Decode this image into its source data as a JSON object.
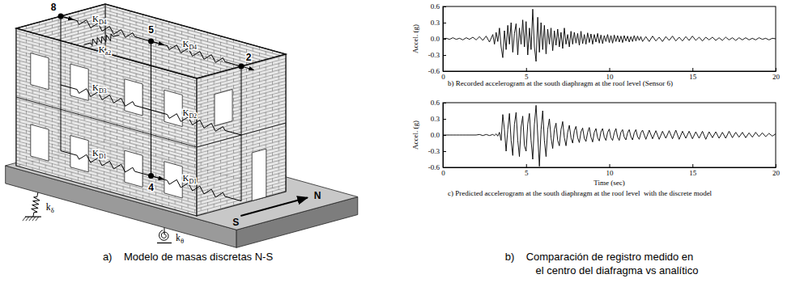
{
  "chart_data": [
    {
      "type": "line",
      "title": "b) Recorded accelerogram at the south diaphragm at the roof level (Sensor 6)",
      "ylabel": "Accel. (g)",
      "color": "#000000",
      "xlim": [
        0,
        20
      ],
      "ylim": [
        -0.6,
        0.6
      ],
      "xticks": [
        0,
        5,
        10,
        15,
        20
      ],
      "yticks": [
        -0.6,
        -0.3,
        {
          "value": 0,
          "label": "0.0"
        },
        0.3,
        0.6
      ],
      "x": [
        0,
        0.2,
        0.4,
        0.6,
        0.8,
        1,
        1.2,
        1.4,
        1.6,
        1.8,
        2,
        2.2,
        2.4,
        2.6,
        2.8,
        3,
        3.1,
        3.2,
        3.3,
        3.4,
        3.5,
        3.6,
        3.7,
        3.8,
        3.9,
        4,
        4.1,
        4.2,
        4.3,
        4.4,
        4.5,
        4.6,
        4.7,
        4.8,
        4.9,
        5,
        5.1,
        5.2,
        5.3,
        5.4,
        5.5,
        5.6,
        5.7,
        5.8,
        5.9,
        6,
        6.1,
        6.2,
        6.3,
        6.4,
        6.5,
        6.6,
        6.7,
        6.8,
        6.9,
        7,
        7.1,
        7.2,
        7.3,
        7.4,
        7.5,
        7.6,
        7.7,
        7.8,
        7.9,
        8,
        8.1,
        8.2,
        8.3,
        8.4,
        8.5,
        8.6,
        8.7,
        8.8,
        8.9,
        9,
        9.1,
        9.2,
        9.3,
        9.4,
        9.5,
        9.6,
        9.7,
        9.8,
        9.9,
        10,
        10.1,
        10.2,
        10.3,
        10.4,
        10.5,
        10.6,
        10.7,
        10.8,
        10.9,
        11,
        11.1,
        11.2,
        11.3,
        11.4,
        11.5,
        11.6,
        11.7,
        11.8,
        11.9,
        12,
        12.2,
        12.4,
        12.6,
        12.8,
        13,
        13.2,
        13.4,
        13.6,
        13.8,
        14,
        14.2,
        14.4,
        14.6,
        14.8,
        15,
        15.2,
        15.4,
        15.6,
        15.8,
        16,
        16.2,
        16.4,
        16.6,
        16.8,
        17,
        17.2,
        17.4,
        17.6,
        17.8,
        18,
        18.2,
        18.4,
        18.6,
        18.8,
        19,
        19.2,
        19.4,
        19.6,
        19.8,
        20
      ],
      "values": [
        0,
        0.01,
        -0.01,
        0.02,
        -0.01,
        0.01,
        -0.02,
        0.02,
        -0.01,
        0.03,
        -0.02,
        0.04,
        -0.03,
        0.05,
        -0.06,
        0.08,
        -0.1,
        0.12,
        -0.05,
        0.2,
        -0.15,
        -0.35,
        0.15,
        -0.2,
        0.25,
        -0.1,
        0.3,
        -0.25,
        0.1,
        0.28,
        -0.3,
        0.2,
        -0.1,
        0.35,
        -0.15,
        0.32,
        -0.3,
        0.2,
        -0.2,
        0.55,
        -0.15,
        -0.42,
        0.4,
        -0.25,
        0.3,
        -0.2,
        0.25,
        -0.28,
        0.18,
        -0.1,
        0.2,
        -0.22,
        0.15,
        -0.12,
        0.18,
        -0.15,
        0.12,
        -0.18,
        0.2,
        -0.1,
        0.08,
        -0.15,
        0.14,
        -0.1,
        0.12,
        -0.08,
        0.1,
        -0.12,
        0.14,
        -0.09,
        0.08,
        -0.1,
        0.11,
        -0.07,
        0.09,
        -0.1,
        0.08,
        -0.06,
        0.1,
        -0.08,
        0.07,
        -0.09,
        0.06,
        -0.05,
        0.08,
        -0.07,
        0.06,
        -0.08,
        0.07,
        -0.05,
        0.06,
        -0.06,
        0.05,
        -0.07,
        0.06,
        -0.04,
        0.05,
        -0.06,
        0.04,
        -0.05,
        0.06,
        -0.04,
        0.05,
        -0.03,
        0.04,
        -0.05,
        0.04,
        -0.05,
        0.05,
        -0.04,
        0.03,
        -0.05,
        0.04,
        -0.03,
        0.05,
        -0.04,
        0.03,
        -0.04,
        0.04,
        -0.03,
        0.05,
        -0.03,
        0.03,
        -0.04,
        0.03,
        -0.02,
        0.03,
        -0.03,
        0.02,
        -0.03,
        0.03,
        -0.02,
        0.02,
        -0.03,
        0.02,
        -0.02,
        0.02,
        -0.02,
        0.01,
        -0.02,
        0.02,
        -0.01,
        0.01,
        -0.02,
        0.01,
        0
      ]
    },
    {
      "type": "line",
      "title": "c) Predicted accelerogram at the south diaphragm at the roof level  with the discrete model",
      "xlabel": "Time (sec)",
      "ylabel": "Accel. (g)",
      "color": "#000000",
      "xlim": [
        0,
        20
      ],
      "ylim": [
        -0.6,
        0.6
      ],
      "xticks": [
        0,
        5,
        10,
        15,
        20
      ],
      "yticks": [
        -0.6,
        -0.3,
        {
          "value": 0,
          "label": "0.0"
        },
        0.3,
        0.6
      ],
      "x": [
        0,
        0.2,
        0.4,
        0.6,
        0.8,
        1,
        1.2,
        1.4,
        1.6,
        1.8,
        2,
        2.2,
        2.4,
        2.6,
        2.8,
        3,
        3.1,
        3.2,
        3.3,
        3.4,
        3.5,
        3.6,
        3.7,
        3.8,
        3.9,
        4,
        4.1,
        4.2,
        4.3,
        4.4,
        4.5,
        4.6,
        4.7,
        4.8,
        4.9,
        5,
        5.1,
        5.2,
        5.3,
        5.4,
        5.5,
        5.6,
        5.7,
        5.8,
        5.9,
        6,
        6.1,
        6.2,
        6.3,
        6.4,
        6.5,
        6.6,
        6.7,
        6.8,
        6.9,
        7,
        7.1,
        7.2,
        7.3,
        7.4,
        7.5,
        7.6,
        7.7,
        7.8,
        7.9,
        8,
        8.1,
        8.2,
        8.3,
        8.4,
        8.5,
        8.6,
        8.7,
        8.8,
        8.9,
        9,
        9.1,
        9.2,
        9.3,
        9.4,
        9.5,
        9.6,
        9.7,
        9.8,
        9.9,
        10,
        10.1,
        10.2,
        10.3,
        10.4,
        10.5,
        10.6,
        10.7,
        10.8,
        10.9,
        11,
        11.1,
        11.2,
        11.3,
        11.4,
        11.5,
        11.6,
        11.7,
        11.8,
        11.9,
        12,
        12.2,
        12.4,
        12.6,
        12.8,
        13,
        13.2,
        13.4,
        13.6,
        13.8,
        14,
        14.2,
        14.4,
        14.6,
        14.8,
        15,
        15.2,
        15.4,
        15.6,
        15.8,
        16,
        16.2,
        16.4,
        16.6,
        16.8,
        17,
        17.2,
        17.4,
        17.6,
        17.8,
        18,
        18.2,
        18.4,
        18.6,
        18.8,
        19,
        19.2,
        19.4,
        19.6,
        19.8,
        20
      ],
      "values": [
        0,
        0,
        0,
        0,
        0,
        0,
        0,
        0,
        0,
        0,
        0,
        0.01,
        -0.01,
        0.01,
        -0.01,
        0.01,
        -0.01,
        0.02,
        -0.02,
        0.05,
        -0.1,
        0.38,
        0.1,
        -0.3,
        0.1,
        0.4,
        -0.1,
        -0.38,
        0.2,
        0.42,
        -0.1,
        -0.4,
        0.15,
        0.35,
        -0.2,
        -0.3,
        0.2,
        0.4,
        -0.1,
        -0.45,
        0.2,
        0.55,
        0,
        -0.58,
        0.1,
        0.45,
        -0.1,
        -0.4,
        0.1,
        0.3,
        -0.05,
        -0.25,
        0.1,
        0.22,
        -0.1,
        -0.2,
        0.1,
        0.25,
        -0.05,
        -0.2,
        0.05,
        0.18,
        -0.05,
        -0.15,
        0.08,
        0.16,
        -0.05,
        -0.14,
        0.06,
        0.13,
        -0.06,
        -0.12,
        0.05,
        0.14,
        -0.04,
        -0.13,
        0.05,
        0.12,
        -0.05,
        -0.11,
        0.06,
        0.12,
        -0.04,
        -0.1,
        0.05,
        0.11,
        -0.05,
        -0.1,
        0.04,
        0.12,
        -0.04,
        -0.1,
        0.05,
        0.1,
        -0.04,
        -0.09,
        0.04,
        0.1,
        -0.03,
        -0.09,
        0.04,
        0.1,
        -0.03,
        -0.08,
        0.04,
        0.09,
        -0.08,
        0.09,
        -0.07,
        0.08,
        -0.08,
        0.07,
        -0.06,
        0.08,
        -0.07,
        0.09,
        -0.08,
        0.07,
        -0.06,
        0.07,
        -0.07,
        0.06,
        -0.06,
        0.07,
        -0.08,
        0.06,
        -0.05,
        0.06,
        -0.06,
        0.05,
        -0.06,
        0.07,
        -0.05,
        0.05,
        -0.04,
        0.05,
        -0.05,
        0.04,
        -0.04,
        0.05,
        -0.03,
        0.04,
        -0.03,
        0.03,
        -0.02,
        0.02
      ]
    }
  ],
  "diagram": {
    "points": [
      "8",
      "5",
      "2",
      "4"
    ],
    "springs": [
      {
        "k": "K",
        "sub": "D4"
      },
      {
        "k": "K",
        "sub": "D4"
      },
      {
        "k": "K",
        "sub": "a2"
      },
      {
        "k": "K",
        "sub": "D3"
      },
      {
        "k": "K",
        "sub": "D2"
      },
      {
        "k": "K",
        "sub": "D1"
      },
      {
        "k": "K",
        "sub": "D1"
      }
    ],
    "base_springs": [
      {
        "k": "k",
        "sub": "δ"
      },
      {
        "k": "k",
        "sub": "θ"
      }
    ],
    "directions": [
      "S",
      "N"
    ]
  },
  "captions": {
    "a": "a)    Modelo de masas discretas N-S",
    "b": [
      "b)    Comparación de registro medido en",
      "el centro del diafragma vs analítico"
    ]
  }
}
